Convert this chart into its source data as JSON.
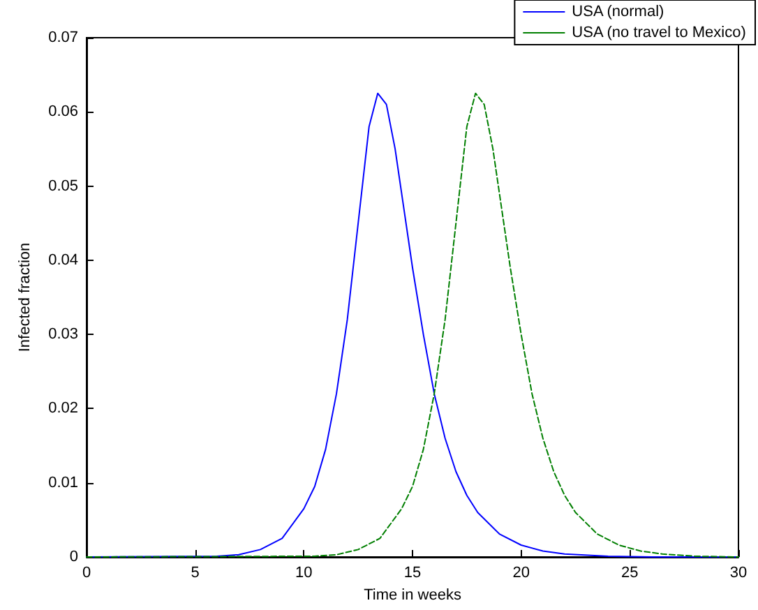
{
  "chart_data": {
    "type": "line",
    "xlabel": "Time in weeks",
    "ylabel": "Infected fraction",
    "xlim": [
      0,
      30
    ],
    "xticks": [
      0,
      5,
      10,
      15,
      20,
      25,
      30
    ],
    "ylim": [
      0,
      0.07
    ],
    "yticks": [
      0,
      0.01,
      0.02,
      0.03,
      0.04,
      0.05,
      0.06,
      0.07
    ],
    "grid": false,
    "legend": "top right",
    "marker": "none",
    "series": [
      {
        "name": "USA (normal)",
        "color": "#0000ff",
        "line_style": "solid",
        "x": [
          0,
          6,
          7,
          8,
          9,
          10,
          10.5,
          11,
          11.5,
          12,
          12.5,
          13,
          13.4,
          13.8,
          14.2,
          14.6,
          15,
          15.5,
          16,
          16.5,
          17,
          17.5,
          18,
          19,
          20,
          21,
          22,
          24,
          26,
          30
        ],
        "values": [
          0,
          0.0001,
          0.0003,
          0.001,
          0.0025,
          0.0065,
          0.0095,
          0.0145,
          0.022,
          0.032,
          0.045,
          0.058,
          0.0625,
          0.061,
          0.055,
          0.047,
          0.039,
          0.03,
          0.022,
          0.016,
          0.0115,
          0.0083,
          0.006,
          0.0031,
          0.0016,
          0.0008,
          0.0004,
          0.0001,
          0,
          0
        ]
      },
      {
        "name": "USA (no travel to Mexico)",
        "color": "#007f00",
        "line_style": "dashed",
        "x": [
          0,
          10.5,
          11.5,
          12.5,
          13.5,
          14.5,
          15,
          15.5,
          16,
          16.5,
          17,
          17.5,
          17.9,
          18.3,
          18.7,
          19.1,
          19.5,
          20,
          20.5,
          21,
          21.5,
          22,
          22.5,
          23.5,
          24.5,
          25.5,
          26.5,
          28,
          30
        ],
        "values": [
          0,
          0.0001,
          0.0003,
          0.001,
          0.0025,
          0.0065,
          0.0095,
          0.0145,
          0.022,
          0.032,
          0.045,
          0.058,
          0.0625,
          0.061,
          0.055,
          0.047,
          0.039,
          0.03,
          0.022,
          0.016,
          0.0115,
          0.0083,
          0.006,
          0.0031,
          0.0016,
          0.0008,
          0.0004,
          0.0001,
          0
        ]
      }
    ]
  }
}
